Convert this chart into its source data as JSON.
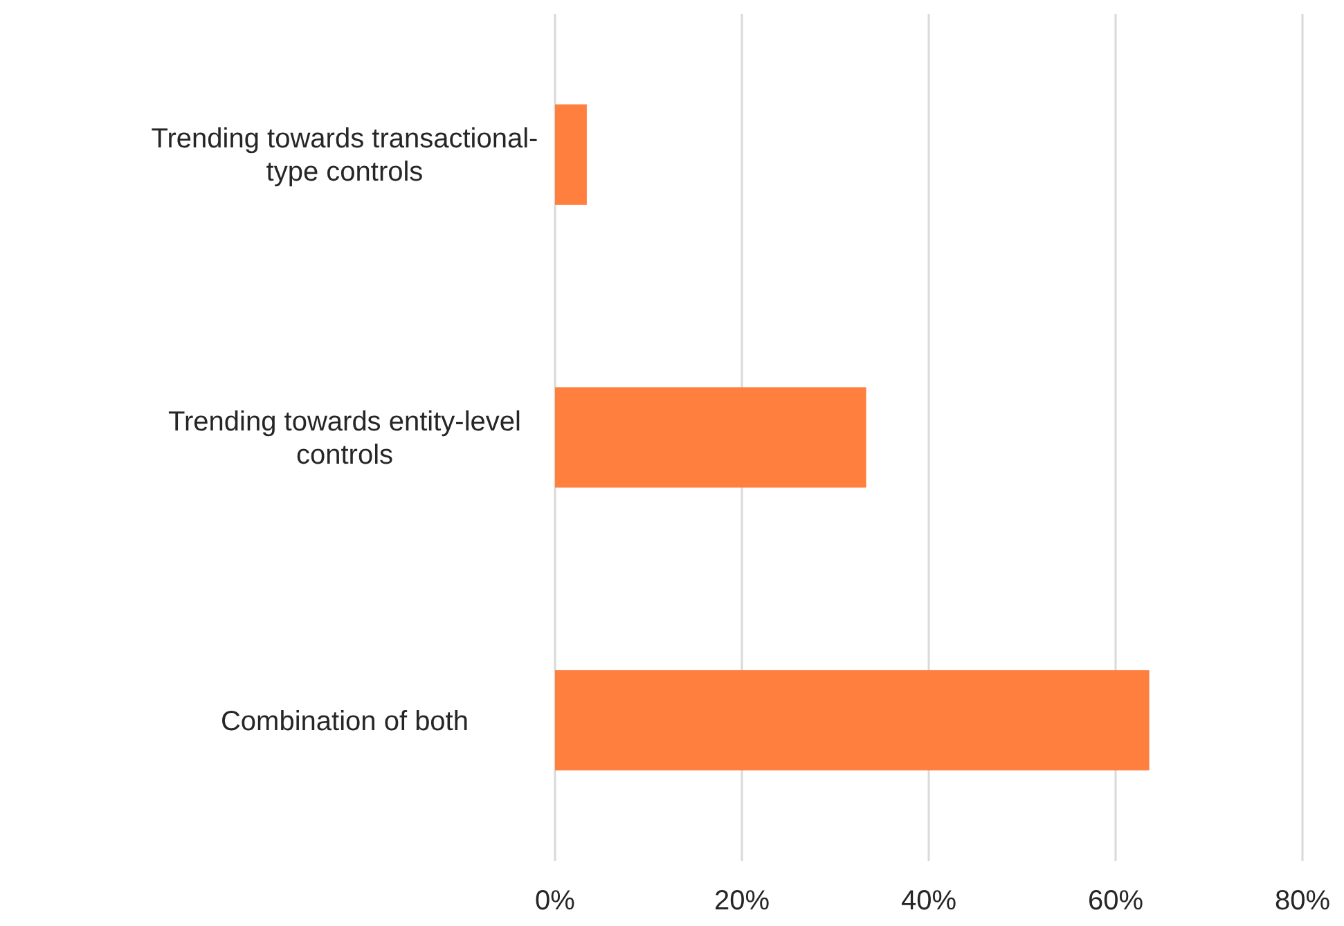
{
  "chart_data": {
    "type": "bar",
    "orientation": "horizontal",
    "categories": [
      "Trending towards transactional-type controls",
      "Trending towards entity-level controls",
      "Combination of both"
    ],
    "values": [
      3.4,
      33.3,
      63.6
    ],
    "color": "#ff7f3f",
    "xlim": [
      0,
      80
    ],
    "xticks": [
      {
        "value": 0,
        "label": "0%"
      },
      {
        "value": 20,
        "label": "20%"
      },
      {
        "value": 40,
        "label": "40%"
      },
      {
        "value": 60,
        "label": "60%"
      },
      {
        "value": 80,
        "label": "80%"
      }
    ],
    "grid": "x"
  }
}
